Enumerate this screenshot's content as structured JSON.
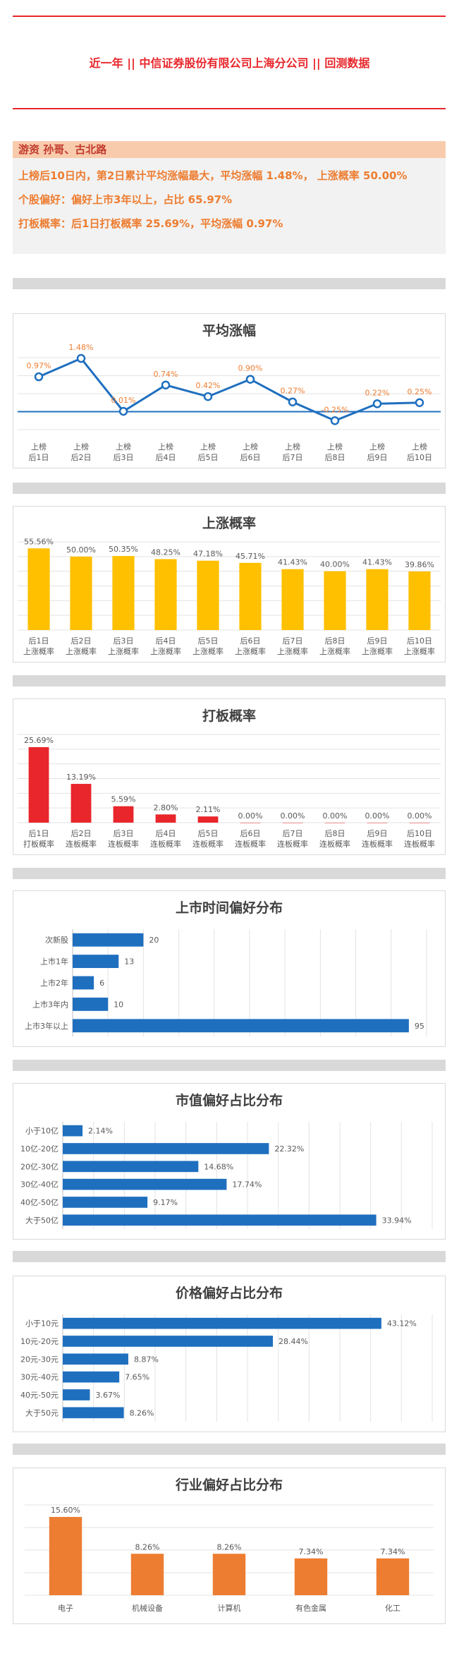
{
  "header": {
    "title": "近一年  ||  中信证券股份有限公司上海分公司  ||  回测数据"
  },
  "summary": {
    "label": "游资  孙哥、古北路",
    "line1": "上榜后10日内，第2日累计平均涨幅最大，平均涨幅 1.48%， 上涨概率 50.00%",
    "line2": "个股偏好：偏好上市3年以上，占比 65.97%",
    "line3": "打板概率：后1日打板概率 25.69%，平均涨幅 0.97%"
  },
  "colors": {
    "red": "#e8262b",
    "orange": "#ed7d31",
    "blue": "#1f6fbf",
    "yellow": "#ffc000",
    "grid": "#d9d9d9"
  },
  "chart_data": [
    {
      "id": "avg",
      "type": "line",
      "title": "平均涨幅",
      "categories": [
        [
          "上榜",
          "后1日"
        ],
        [
          "上榜",
          "后2日"
        ],
        [
          "上榜",
          "后3日"
        ],
        [
          "上榜",
          "后4日"
        ],
        [
          "上榜",
          "后5日"
        ],
        [
          "上榜",
          "后6日"
        ],
        [
          "上榜",
          "后7日"
        ],
        [
          "上榜",
          "后8日"
        ],
        [
          "上榜",
          "后9日"
        ],
        [
          "上榜",
          "后10日"
        ]
      ],
      "values": [
        0.97,
        1.48,
        0.01,
        0.74,
        0.42,
        0.9,
        0.27,
        -0.25,
        0.22,
        0.25
      ],
      "labels": [
        "0.97%",
        "1.48%",
        "0.01%",
        "0.74%",
        "0.42%",
        "0.90%",
        "0.27%",
        "-0.25%",
        "0.22%",
        "0.25%"
      ],
      "ylim": [
        -0.5,
        1.5
      ],
      "grid": true
    },
    {
      "id": "up",
      "type": "bar",
      "title": "上涨概率",
      "categories": [
        [
          "后1日",
          "上涨概率"
        ],
        [
          "后2日",
          "上涨概率"
        ],
        [
          "后3日",
          "上涨概率"
        ],
        [
          "后4日",
          "上涨概率"
        ],
        [
          "后5日",
          "上涨概率"
        ],
        [
          "后6日",
          "上涨概率"
        ],
        [
          "后7日",
          "上涨概率"
        ],
        [
          "后8日",
          "上涨概率"
        ],
        [
          "后9日",
          "上涨概率"
        ],
        [
          "后10日",
          "上涨概率"
        ]
      ],
      "values": [
        55.56,
        50.0,
        50.35,
        48.25,
        47.18,
        45.71,
        41.43,
        40.0,
        41.43,
        39.86
      ],
      "labels": [
        "55.56%",
        "50.00%",
        "50.35%",
        "48.25%",
        "47.18%",
        "45.71%",
        "41.43%",
        "40.00%",
        "41.43%",
        "39.86%"
      ],
      "ylim": [
        0,
        60
      ],
      "grid": true
    },
    {
      "id": "board",
      "type": "bar",
      "title": "打板概率",
      "categories": [
        [
          "后1日",
          "打板概率"
        ],
        [
          "后2日",
          "连板概率"
        ],
        [
          "后3日",
          "连板概率"
        ],
        [
          "后4日",
          "连板概率"
        ],
        [
          "后5日",
          "连板概率"
        ],
        [
          "后6日",
          "连板概率"
        ],
        [
          "后7日",
          "连板概率"
        ],
        [
          "后8日",
          "连板概率"
        ],
        [
          "后9日",
          "连板概率"
        ],
        [
          "后10日",
          "连板概率"
        ]
      ],
      "values": [
        25.69,
        13.19,
        5.59,
        2.8,
        2.11,
        0.0,
        0.0,
        0.0,
        0.0,
        0.0
      ],
      "labels": [
        "25.69%",
        "13.19%",
        "5.59%",
        "2.80%",
        "2.11%",
        "0.00%",
        "0.00%",
        "0.00%",
        "0.00%",
        "0.00%"
      ],
      "ylim": [
        0,
        30
      ],
      "grid": true
    },
    {
      "id": "listing",
      "type": "bar",
      "orientation": "horizontal",
      "title": "上市时间偏好分布",
      "categories": [
        "次新股",
        "上市1年",
        "上市2年",
        "上市3年内",
        "上市3年以上"
      ],
      "values": [
        20,
        13,
        6,
        10,
        95
      ],
      "labels": [
        "20",
        "13",
        "6",
        "10",
        "95"
      ],
      "xlim": [
        0,
        100
      ],
      "grid": true
    },
    {
      "id": "mcap",
      "type": "bar",
      "orientation": "horizontal",
      "title": "市值偏好占比分布",
      "categories": [
        "小于10亿",
        "10亿-20亿",
        "20亿-30亿",
        "30亿-40亿",
        "40亿-50亿",
        "大于50亿"
      ],
      "values": [
        2.14,
        22.32,
        14.68,
        17.74,
        9.17,
        33.94
      ],
      "labels": [
        "2.14%",
        "22.32%",
        "14.68%",
        "17.74%",
        "9.17%",
        "33.94%"
      ],
      "xlim": [
        0,
        40
      ],
      "grid": true
    },
    {
      "id": "price",
      "type": "bar",
      "orientation": "horizontal",
      "title": "价格偏好占比分布",
      "categories": [
        "小于10元",
        "10元-20元",
        "20元-30元",
        "30元-40元",
        "40元-50元",
        "大于50元"
      ],
      "values": [
        43.12,
        28.44,
        8.87,
        7.65,
        3.67,
        8.26
      ],
      "labels": [
        "43.12%",
        "28.44%",
        "8.87%",
        "7.65%",
        "3.67%",
        "8.26%"
      ],
      "xlim": [
        0,
        50
      ],
      "grid": true
    },
    {
      "id": "industry",
      "type": "bar",
      "title": "行业偏好占比分布",
      "categories": [
        [
          "电子"
        ],
        [
          "机械设备"
        ],
        [
          "计算机"
        ],
        [
          "有色金属"
        ],
        [
          "化工"
        ]
      ],
      "values": [
        15.6,
        8.26,
        8.26,
        7.34,
        7.34
      ],
      "labels": [
        "15.60%",
        "8.26%",
        "8.26%",
        "7.34%",
        "7.34%"
      ],
      "ylim": [
        0,
        18
      ],
      "grid": true
    }
  ]
}
